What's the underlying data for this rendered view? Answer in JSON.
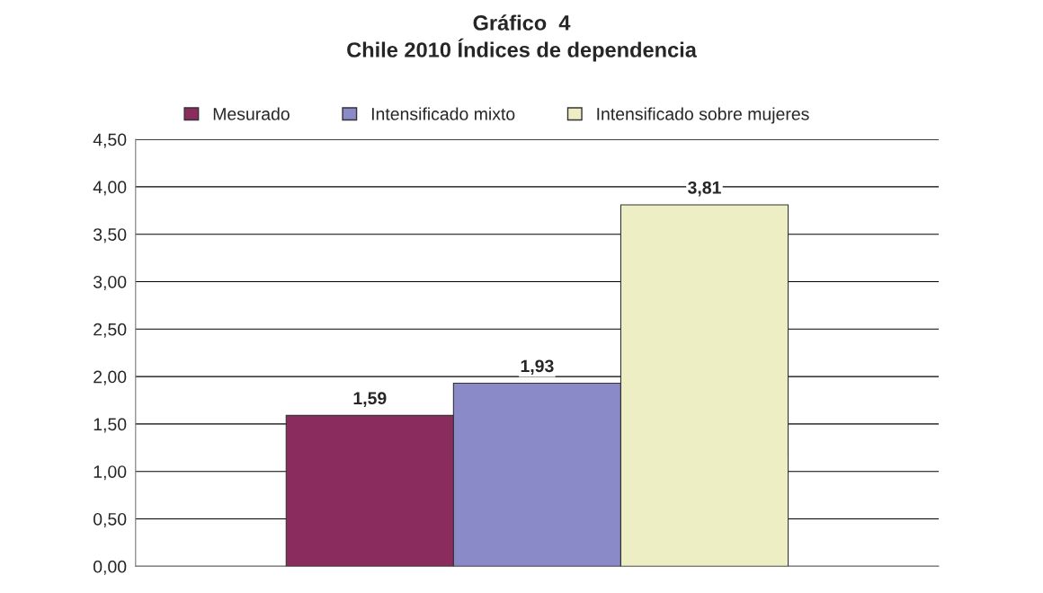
{
  "chart_data": {
    "type": "bar",
    "title": "Gráfico  4\nChile 2010 Índices de dependencia",
    "categories": [
      null
    ],
    "series": [
      {
        "name": "Mesurado",
        "color": "#8b2c5e",
        "values": [
          1.59
        ],
        "value_labels": [
          "1,59"
        ]
      },
      {
        "name": "Intensificado mixto",
        "color": "#8a8ac8",
        "values": [
          1.93
        ],
        "value_labels": [
          "1,93"
        ]
      },
      {
        "name": "Intensificado sobre mujeres",
        "color": "#eeeec4",
        "values": [
          3.81
        ],
        "value_labels": [
          "3,81"
        ]
      }
    ],
    "ylim": [
      0,
      4.5
    ],
    "yticks": [
      {
        "value": 0,
        "label": "0,00"
      },
      {
        "value": 0.5,
        "label": "0,50"
      },
      {
        "value": 1,
        "label": "1,00"
      },
      {
        "value": 1.5,
        "label": "1,50"
      },
      {
        "value": 2,
        "label": "2,00"
      },
      {
        "value": 2.5,
        "label": "2,50"
      },
      {
        "value": 3,
        "label": "3,00"
      },
      {
        "value": 3.5,
        "label": "3,50"
      },
      {
        "value": 4,
        "label": "4,00"
      },
      {
        "value": 4.5,
        "label": "4,50"
      }
    ],
    "grid": "y",
    "legend": "top"
  }
}
